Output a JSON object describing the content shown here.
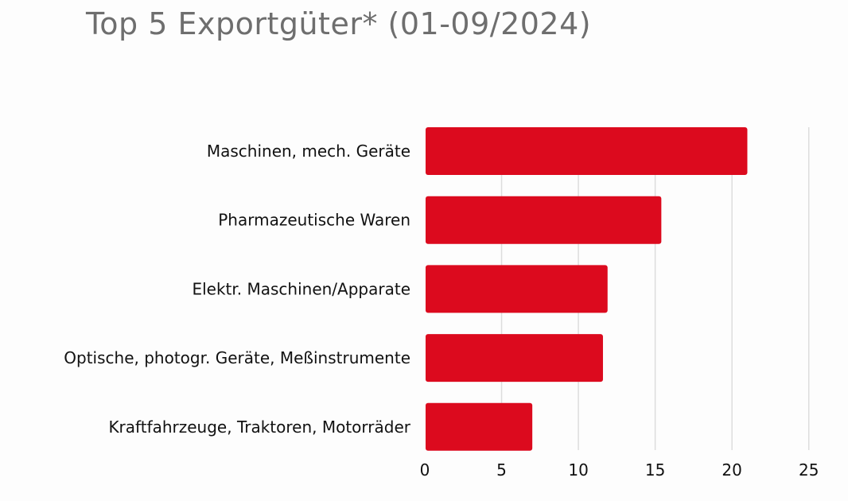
{
  "title": "Top 5 Exportgüter* (01-09/2024)",
  "chart_data": {
    "type": "bar",
    "orientation": "horizontal",
    "title": "Top 5 Exportgüter* (01-09/2024)",
    "categories": [
      "Maschinen, mech. Geräte",
      "Pharmazeutische Waren",
      "Elektr. Maschinen/Apparate",
      "Optische, photogr. Geräte, Meßinstrumente",
      "Kraftfahrzeuge, Traktoren, Motorräder"
    ],
    "values": [
      21.0,
      15.4,
      11.9,
      11.6,
      7.0
    ],
    "xlim": [
      0,
      25
    ],
    "xticks": [
      "0",
      "5",
      "10",
      "15",
      "20",
      "25"
    ],
    "xlabel": "",
    "ylabel": "",
    "grid": "vertical",
    "bar_color": "#dc0a1e"
  }
}
